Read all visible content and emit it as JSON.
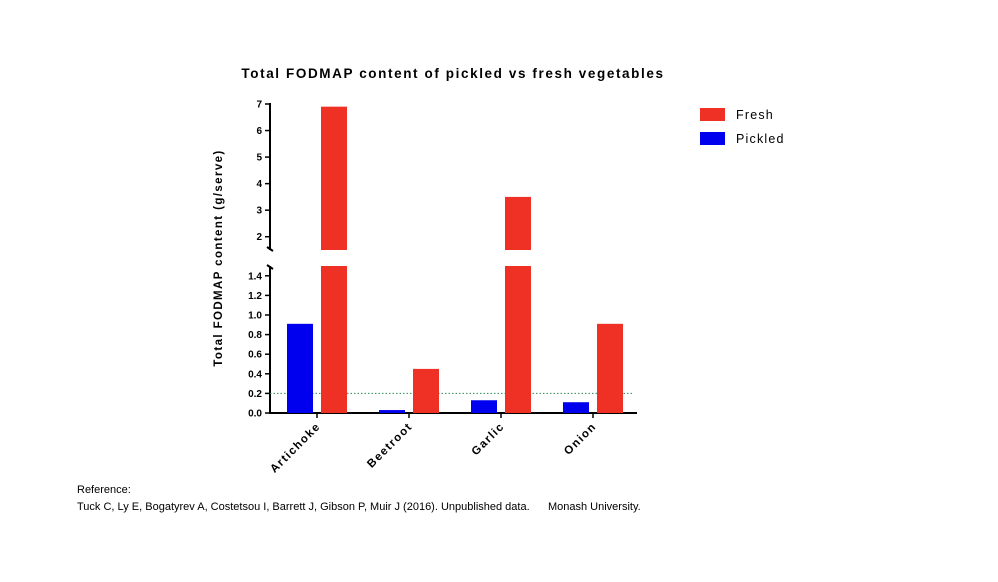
{
  "chart_data": {
    "type": "bar",
    "title": "Total FODMAP content of pickled vs fresh vegetables",
    "xlabel": "",
    "ylabel": "Total FODMAP content (g/serve)",
    "categories": [
      "Artichoke",
      "Beetroot",
      "Garlic",
      "Onion"
    ],
    "series": [
      {
        "name": "Pickled",
        "color": "#0000ee",
        "values": [
          0.91,
          0.03,
          0.13,
          0.11
        ]
      },
      {
        "name": "Fresh",
        "color": "#ee3124",
        "values": [
          6.9,
          0.45,
          3.5,
          0.91
        ]
      }
    ],
    "legend_order": [
      "Fresh",
      "Pickled"
    ],
    "y_axis_break": true,
    "ylim_lower": [
      0,
      1.5
    ],
    "ylim_upper": [
      1.5,
      7
    ],
    "yticks_lower": [
      "0.0",
      "0.2",
      "0.4",
      "0.6",
      "0.8",
      "1.0",
      "1.2",
      "1.4"
    ],
    "yticks_upper": [
      "2",
      "3",
      "4",
      "5",
      "6",
      "7"
    ],
    "reference_line": {
      "y": 0.2,
      "style": "dotted",
      "color": "#2e8b57"
    },
    "grid": false,
    "legend_position": "top-right"
  },
  "reference": {
    "heading": "Reference:",
    "text": "Tuck C, Ly E, Bogatyrev A, Costetsou I, Barrett J, Gibson P, Muir J (2016). Unpublished data.      Monash University."
  }
}
